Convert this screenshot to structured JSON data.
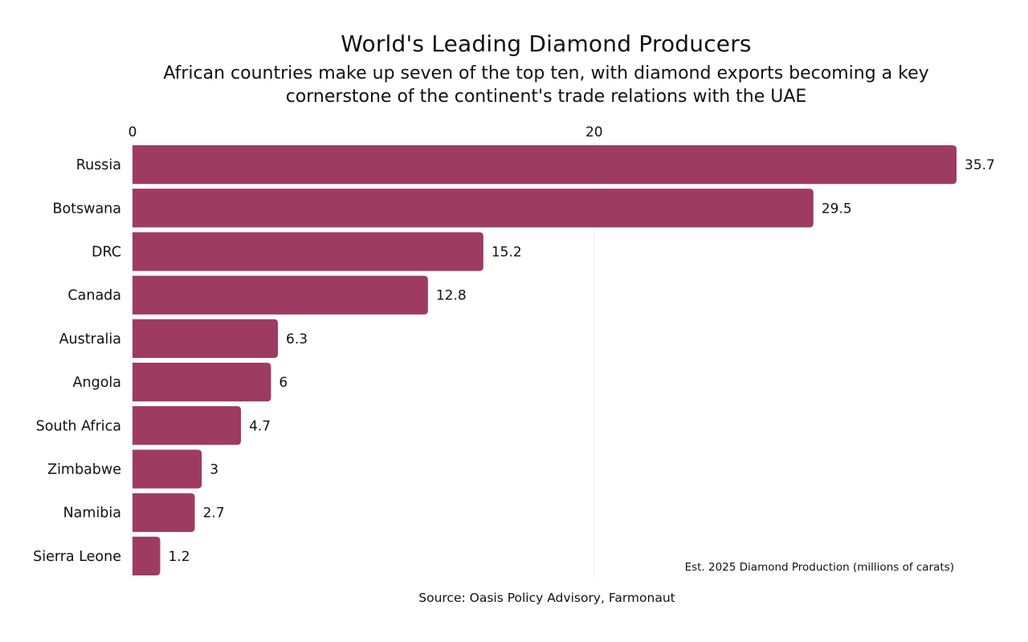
{
  "chart_data": {
    "type": "bar",
    "orientation": "horizontal",
    "title": "World's Leading Diamond Producers",
    "subtitle": "African countries make up seven of the top ten, with diamond exports becoming a key cornerstone of the continent's trade relations with the UAE",
    "xlabel": "Est. 2025 Diamond Production (millions of carats)",
    "ylabel": "",
    "source": "Source: Oasis Policy Advisory, Farmonaut",
    "categories": [
      "Russia",
      "Botswana",
      "DRC",
      "Canada",
      "Australia",
      "Angola",
      "South Africa",
      "Zimbabwe",
      "Namibia",
      "Sierra Leone"
    ],
    "values": [
      35.7,
      29.5,
      15.2,
      12.8,
      6.3,
      6,
      4.7,
      3,
      2.7,
      1.2
    ],
    "data_labels": [
      "35.7",
      "29.5",
      "15.2",
      "12.8",
      "6.3",
      "6",
      "4.7",
      "3",
      "2.7",
      "1.2"
    ],
    "xticks": [
      0,
      20
    ],
    "xtick_labels": [
      "0",
      "20"
    ],
    "xlim": [
      0,
      35.7
    ],
    "grid": true,
    "axis_position": "top",
    "bar_color": "#9e3b61"
  }
}
